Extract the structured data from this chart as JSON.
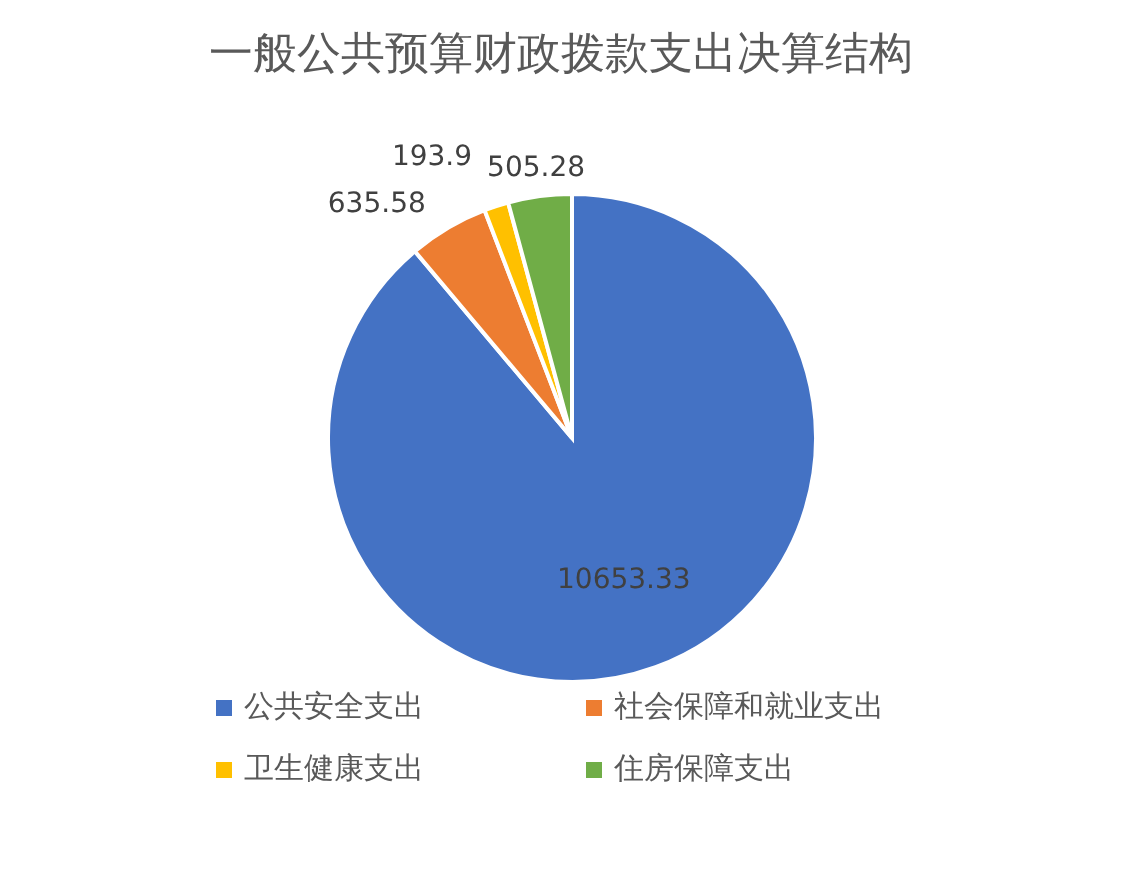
{
  "chart_data": {
    "type": "pie",
    "title": "一般公共预算财政拨款支出决算结构",
    "categories": [
      "公共安全支出",
      "社会保障和就业支出",
      "卫生健康支出",
      "住房保障支出"
    ],
    "values": [
      10653.33,
      635.58,
      193.9,
      505.28
    ],
    "colors": [
      "#4472c4",
      "#ed7d31",
      "#ffc000",
      "#70ad47"
    ],
    "data_labels": true,
    "legend": "bottom"
  }
}
